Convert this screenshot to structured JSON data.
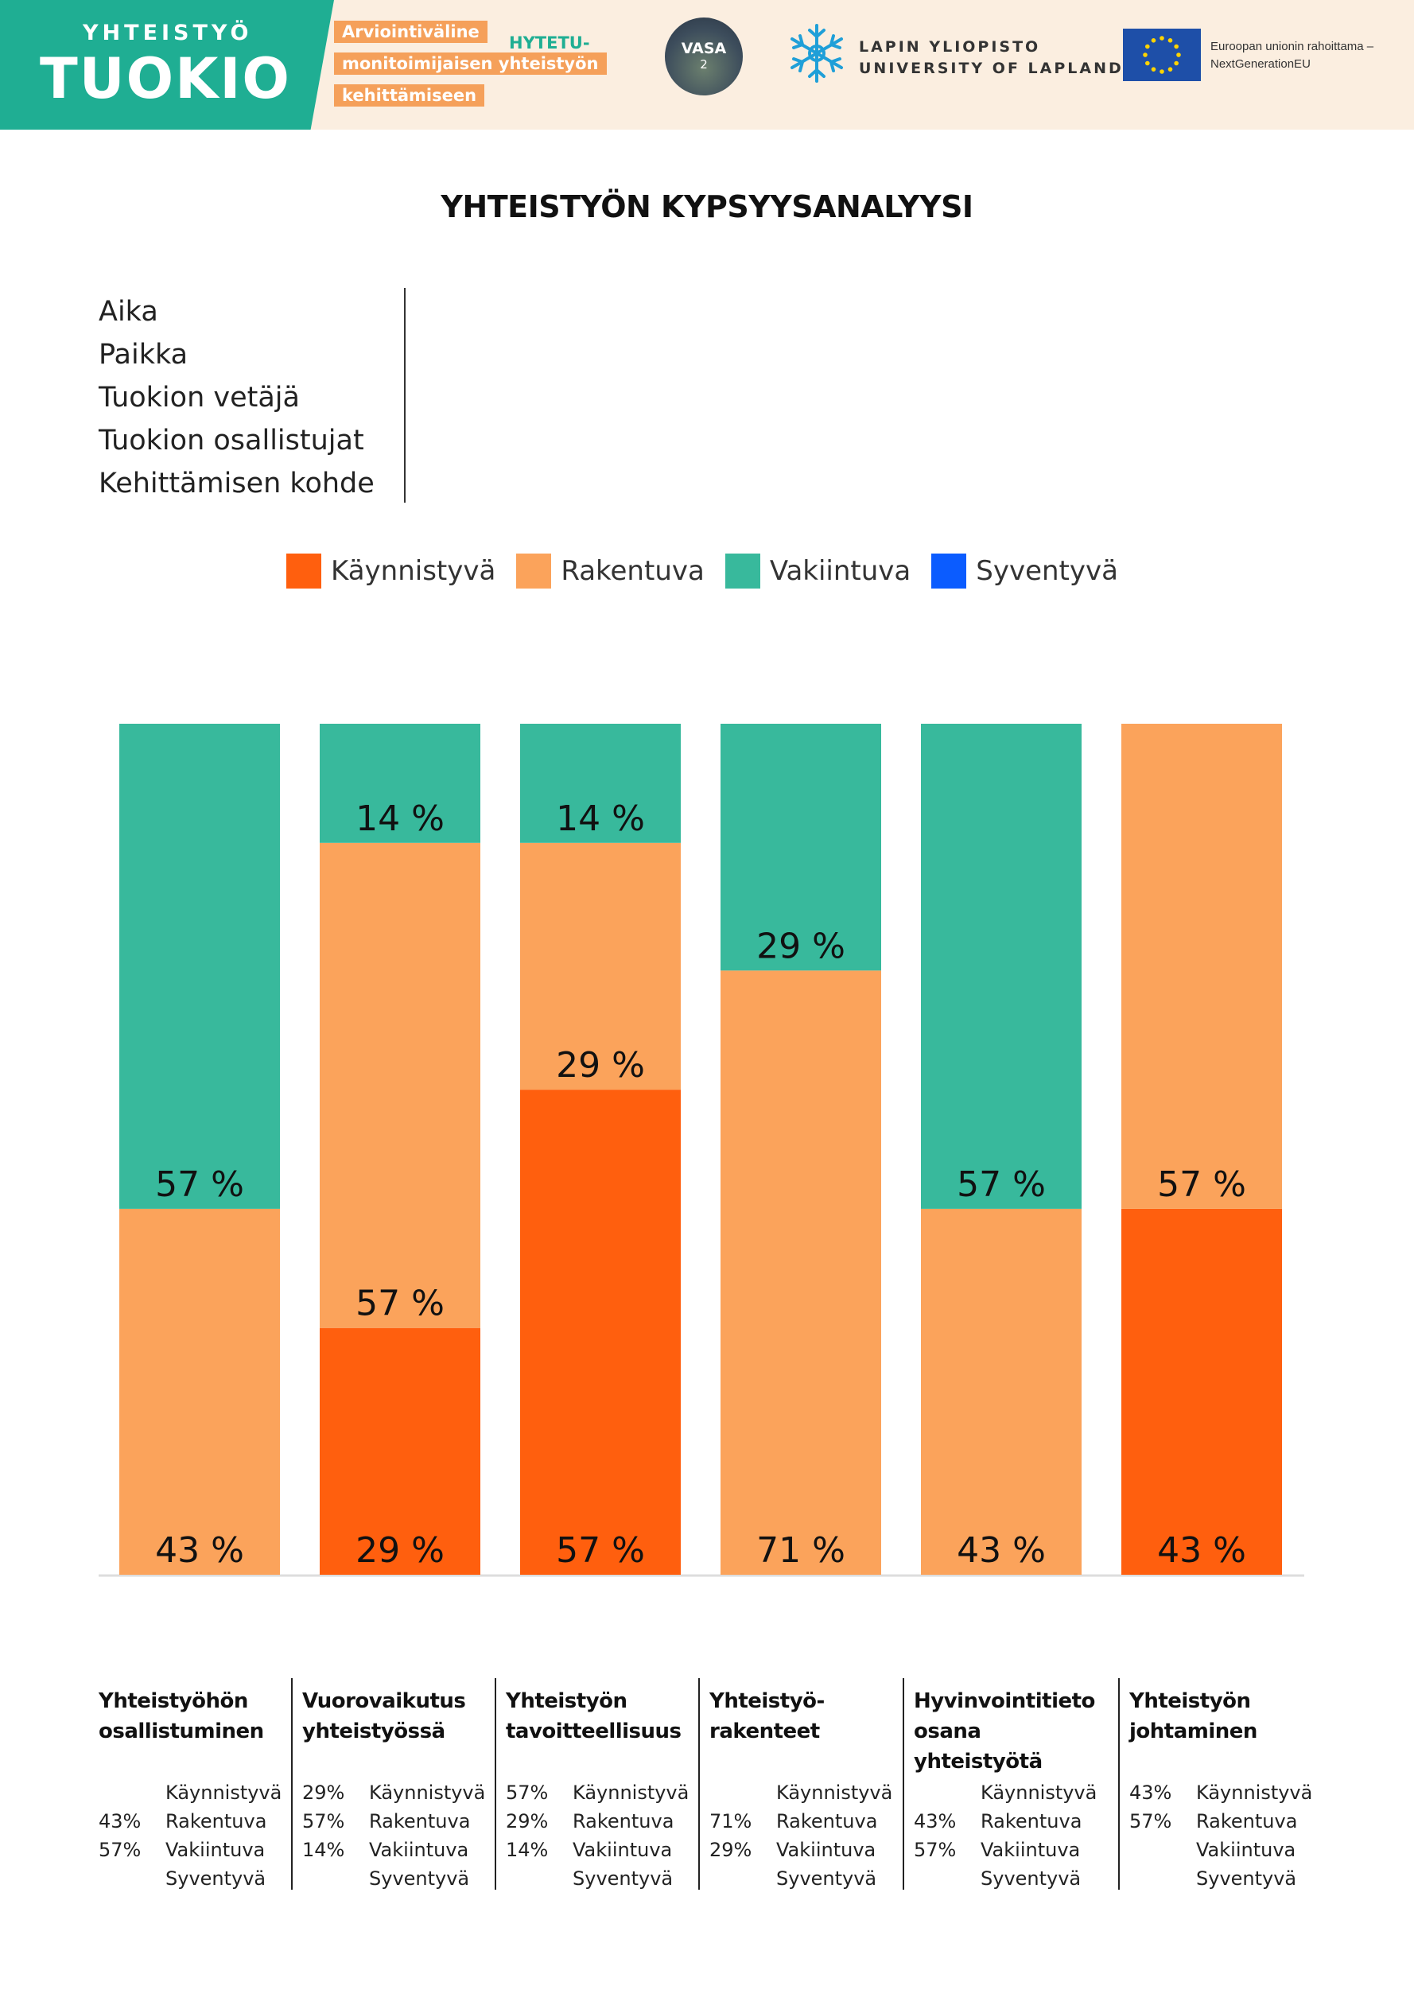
{
  "header": {
    "brand_small": "YHTEISTYÖ",
    "brand_big": "TUOKIO",
    "tool_lines": [
      "Arviointiväline",
      "monitoimijaisen yhteistyön",
      "kehittämiseen"
    ],
    "hytetu": "HYTETU-",
    "vasa_title": "VASA",
    "vasa_number": "2",
    "university_fi": "LAPIN YLIOPISTO",
    "university_en": "UNIVERSITY OF LAPLAND",
    "eu_line1": "Euroopan unionin rahoittama –",
    "eu_line2": "NextGenerationEU",
    "colors": {
      "teal": "#1fae93",
      "banner_bg": "#fbeee0",
      "orange_label": "#f5a05a"
    }
  },
  "title": "YHTEISTYÖN KYPSYYSANALYYSI",
  "info": [
    "Aika",
    "Paikka",
    "Tuokion vetäjä",
    "Tuokion osallistujat",
    "Kehittämisen kohde"
  ],
  "chart_data": {
    "type": "bar",
    "stacked": true,
    "categories": [
      "Yhteistyöhön osallistuminen",
      "Vuorovaikutus yhteistyössä",
      "Yhteistyön tavoitteellisuus",
      "Yhteistyö-rakenteet",
      "Hyvinvointitieto osana yhteistyötä",
      "Yhteistyön johtaminen"
    ],
    "series": [
      {
        "name": "Käynnistyvä",
        "color": "#ff5f0e",
        "values": [
          0,
          29,
          57,
          0,
          0,
          43
        ]
      },
      {
        "name": "Rakentuva",
        "color": "#fba35b",
        "values": [
          43,
          57,
          29,
          71,
          43,
          57
        ]
      },
      {
        "name": "Vakiintuva",
        "color": "#38b99c",
        "values": [
          57,
          14,
          14,
          29,
          57,
          0
        ]
      },
      {
        "name": "Syventyvä",
        "color": "#0b5cff",
        "values": [
          0,
          0,
          0,
          0,
          0,
          0
        ]
      }
    ],
    "ylim": [
      0,
      100
    ],
    "legend": "top",
    "grid": false
  },
  "table": {
    "headers": [
      [
        "Yhteistyöhön",
        "osallistuminen"
      ],
      [
        "Vuorovaikutus",
        "yhteistyössä"
      ],
      [
        "Yhteistyön",
        "tavoitteellisuus"
      ],
      [
        "Yhteistyö-",
        "rakenteet"
      ],
      [
        "Hyvinvointitieto",
        "osana yhteistyötä"
      ],
      [
        "Yhteistyön",
        "johtaminen"
      ]
    ],
    "labels": [
      "Käynnistyvä",
      "Rakentuva",
      "Vakiintuva",
      "Syventyvä"
    ],
    "values": [
      [
        "",
        "43%",
        "57%",
        ""
      ],
      [
        "29%",
        "57%",
        "14%",
        ""
      ],
      [
        "57%",
        "29%",
        "14%",
        ""
      ],
      [
        "",
        "71%",
        "29%",
        ""
      ],
      [
        "",
        "43%",
        "57%",
        ""
      ],
      [
        "43%",
        "57%",
        "",
        ""
      ]
    ]
  }
}
